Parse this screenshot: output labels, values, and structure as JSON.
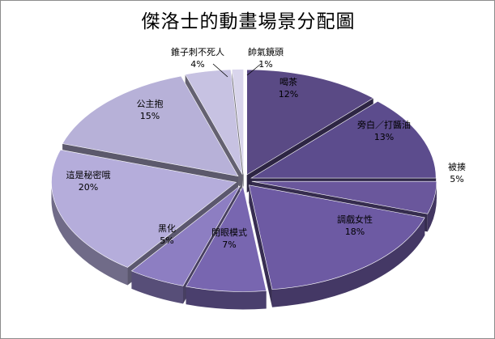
{
  "chart_data": {
    "type": "pie",
    "title": "傑洛士的動畫場景分配圖",
    "slices": [
      {
        "label": "喝茶",
        "value": 12,
        "value_label": "12%",
        "color": "#5a4a85"
      },
      {
        "label": "旁白／打醬油",
        "value": 13,
        "value_label": "13%",
        "color": "#5c4c8d"
      },
      {
        "label": "被揍",
        "value": 5,
        "value_label": "5%",
        "color": "#6a579c"
      },
      {
        "label": "調戲女性",
        "value": 18,
        "value_label": "18%",
        "color": "#6d5aa3"
      },
      {
        "label": "閉眼模式",
        "value": 7,
        "value_label": "7%",
        "color": "#7866b0"
      },
      {
        "label": "黑化",
        "value": 5,
        "value_label": "5%",
        "color": "#8d7ec2"
      },
      {
        "label": "這是秘密哦",
        "value": 20,
        "value_label": "20%",
        "color": "#b5addb"
      },
      {
        "label": "公主抱",
        "value": 15,
        "value_label": "15%",
        "color": "#b7b1d8"
      },
      {
        "label": "錐子刺不死人",
        "value": 4,
        "value_label": "4%",
        "color": "#c7c2e2"
      },
      {
        "label": "帥氣鏡頭",
        "value": 1,
        "value_label": "1%",
        "color": "#d9d5ec"
      }
    ],
    "style": "3d-exploded"
  }
}
